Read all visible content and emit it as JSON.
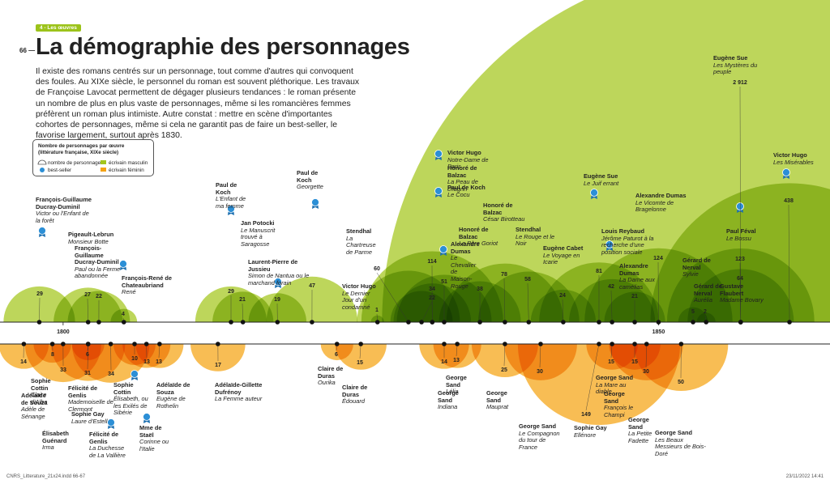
{
  "chart_data": {
    "type": "semicircle",
    "section_tag": "4 - Les œuvres",
    "page_number": "66 —",
    "title": "La démographie des personnages",
    "text": "Il existe des romans centrés sur un personnage, tout comme d'autres qui convoquent des foules. Au XIXe siècle, le personnel du roman est souvent pléthorique. Les travaux de Françoise Lavocat permettent de dégager plusieurs tendances : le roman présente un nombre de plus en plus vaste de personnages, même si les romancières femmes préfèrent un roman plus intimiste. Autre constat : mettre en scène d'importantes cohortes de personnages, même si cela ne garantit pas de faire un best-seller, le favorise largement, surtout après 1830.",
    "legend_title": "Nombre de personnages par œuvre (littérature française, XIXe siècle)",
    "size_legend": "nombre de personnages",
    "bestseller_legend": "best-seller",
    "footer_left": "CNRS_Litterature_21x24.indd 66-67",
    "footer_right": "23/11/2022 14:41",
    "xlim": [
      1794.7,
      1864.4
    ],
    "xticks": [
      1800,
      1850
    ],
    "series": [
      {
        "name": "écrivain masculin",
        "color": "#a4c61c",
        "x": [
          1798.0,
          1802.1,
          1803.0,
          1805.1,
          1814.1,
          1815.1,
          1818.0,
          1820.9,
          1826.4,
          1829.0,
          1830.1,
          1831.0,
          1831.0,
          1832.0,
          1835.0,
          1837.1,
          1839.1,
          1842.0,
          1845.0,
          1846.1,
          1848.0,
          1850.0,
          1852.9,
          1854.0,
          1856.9,
          1856.9,
          1856.9,
          1861.0
        ],
        "values": [
          29,
          27,
          22,
          4,
          29,
          21,
          19,
          47,
          1,
          60,
          22,
          114,
          34,
          51,
          38,
          78,
          58,
          24,
          81,
          42,
          21,
          124,
          5,
          2,
          123,
          64,
          2912,
          438
        ],
        "value_labels": [
          "29",
          "27",
          "22",
          "4",
          "29",
          "21",
          "19",
          "47",
          "1",
          "60",
          "22",
          "114",
          "34",
          "51",
          "38",
          "78",
          "58",
          "24",
          "81",
          "42",
          "21",
          "124",
          "5",
          "2",
          "123",
          "64",
          "2 912",
          "438"
        ],
        "bestseller": [
          true,
          false,
          false,
          true,
          true,
          false,
          true,
          true,
          false,
          false,
          true,
          true,
          false,
          true,
          false,
          false,
          false,
          false,
          true,
          true,
          false,
          false,
          false,
          false,
          true,
          false,
          false,
          true
        ],
        "authors": [
          "François-Guillaume Ducray-Duminil",
          "Pigeault-Lebrun",
          "François-Guillaume Ducray-Duminil",
          "François-René de Chateaubriand",
          "Paul de Koch",
          "Jan Potocki",
          "Laurent-Pierre de Jussieu",
          "Paul de Koch",
          "Victor Hugo",
          "Stendhal",
          "Paul de Koch",
          "Victor Hugo",
          "Honoré de Balzac",
          "Alexandre Dumas",
          "Honoré de Balzac",
          "Honoré de Balzac",
          "Stendhal",
          "Eugène Cabet",
          "Eugène Sue",
          "Louis Reybaud",
          "Alexandre Dumas",
          "Alexandre Dumas",
          "Gérard de Nerval",
          "Gérard de Nerval",
          "Paul Féval",
          "Gustave Flaubert",
          "Eugène Sue",
          "Victor Hugo"
        ],
        "titles": [
          "Victor ou l'Enfant de la forêt",
          "Monsieur Botte",
          "Paul ou la Ferme abandonnée",
          "René",
          "L'Enfant de ma femme",
          "Le Manuscrit trouvé à Saragosse",
          "Simon de Nantua ou le marchand forain",
          "Georgette",
          "Le Dernier Jour d'un condamné",
          "La Chartreuse de Parme",
          "Le Cocu",
          "Notre-Dame de Paris",
          "La Peau de chagrin",
          "Le Chevalier de Maison-Rouge",
          "Le Père Goriot",
          "César Birotteau",
          "Le Rouge et le Noir",
          "Le Voyage en Icarie",
          "Le Juif errant",
          "Jérôme Paturot à la recherche d'une position sociale",
          "La Dame aux camélias",
          "Le Vicomte de Bragelonne",
          "Sylvie",
          "Aurélia",
          "Le Bossu",
          "Madame Bovary",
          "Les Mystères du peuple",
          "Les Misérables"
        ]
      },
      {
        "name": "écrivain féminin",
        "color": "#f5a312",
        "x": [
          1796.7,
          1799.1,
          1800.0,
          1802.1,
          1802.1,
          1806.0,
          1804.0,
          1807.0,
          1808.1,
          1813.0,
          1823.0,
          1825.0,
          1832.0,
          1833.1,
          1837.1,
          1840.1,
          1845.0,
          1846.1,
          1848.0,
          1849.0,
          1851.9
        ],
        "values": [
          14,
          8,
          33,
          6,
          31,
          10,
          34,
          13,
          13,
          17,
          6,
          15,
          14,
          13,
          25,
          30,
          149,
          15,
          15,
          30,
          50
        ],
        "value_labels": [
          "14",
          "8",
          "33",
          "6",
          "31",
          "10",
          "34",
          "13",
          "13",
          "17",
          "6",
          "15",
          "14",
          "13",
          "25",
          "30",
          "149",
          "15",
          "15",
          "30",
          "50"
        ],
        "bestseller": [
          false,
          false,
          false,
          false,
          false,
          true,
          true,
          true,
          false,
          false,
          false,
          false,
          false,
          false,
          false,
          false,
          false,
          false,
          false,
          false,
          false
        ],
        "authors": [
          "Adélaïde de Souza",
          "Sophie Cottin",
          "Élisabeth Guénard",
          "Félicité de Genlis",
          "Sophie Gay",
          "Sophie Cottin",
          "Félicité de Genlis",
          "Mme de Staël",
          "Adélaïde de Souza",
          "Adélaïde-Gillette Dufrénoy",
          "Claire de Duras",
          "Claire de Duras",
          "George Sand",
          "George Sand",
          "George Sand",
          "George Sand",
          "Sophie Gay",
          "George Sand",
          "George Sand",
          "George Sand",
          "George Sand"
        ],
        "titles": [
          "Adèle de Sénange",
          "Claire d'Albe",
          "Irma",
          "Mademoiselle de Clermont",
          "Laure d'Estell",
          "Élisabeth, ou les Exilés de Sibérie",
          "La Duchesse de La Vallière",
          "Corinne ou l'Italie",
          "Eugène de Rothelin",
          "La Femme auteur",
          "Ourika",
          "Édouard",
          "Indiana",
          "Lélia",
          "Mauprat",
          "Le Compagnon du tour de France",
          "Ellénore",
          "La Mare au diable",
          "François le Champi",
          "La Petite Fadette",
          "Les Beaux Messieurs de Bois-Doré"
        ]
      }
    ]
  }
}
